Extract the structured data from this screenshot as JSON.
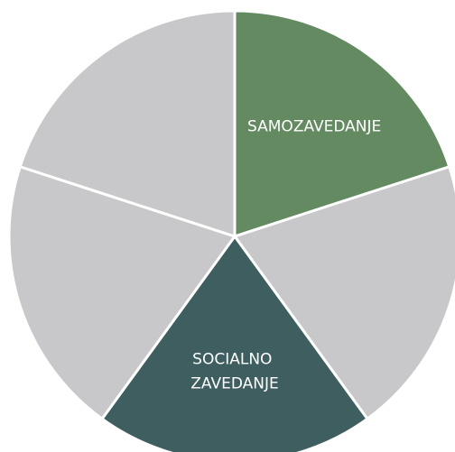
{
  "chart_data": {
    "type": "pie",
    "categories": [
      "SAMOZAVEDANJE",
      null,
      "SOCIALNO ZAVEDANJE",
      null,
      null
    ],
    "values": [
      20,
      20,
      20,
      20,
      20
    ],
    "colors": [
      "#648a62",
      "#c8c8ca",
      "#3f5e60",
      "#c8c8ca",
      "#c8c8ca"
    ]
  }
}
